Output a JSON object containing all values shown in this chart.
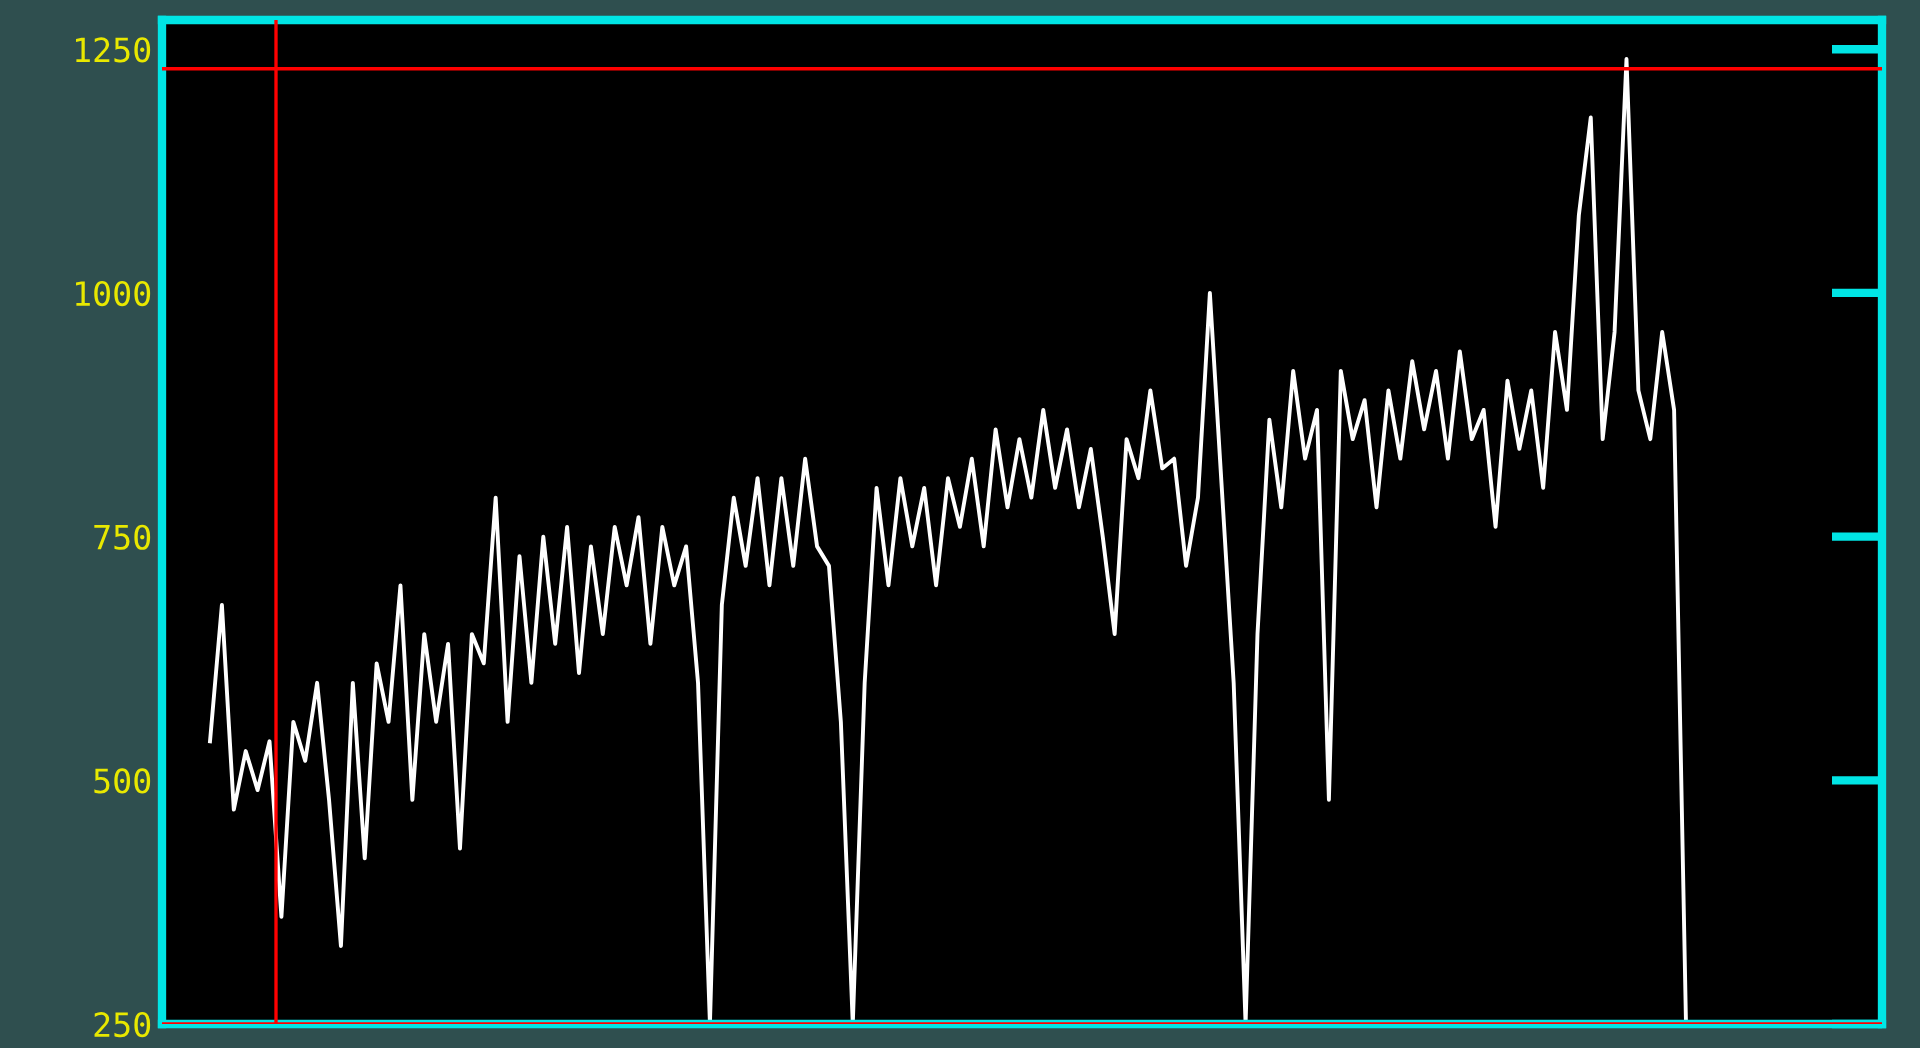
{
  "chart_data": {
    "type": "line",
    "categories": [
      null,
      null,
      null,
      null,
      null,
      null,
      null,
      null,
      null,
      null,
      null,
      null,
      null,
      null,
      null,
      null,
      null,
      null,
      null,
      null,
      null,
      null,
      null,
      null,
      null,
      null,
      null,
      null,
      null,
      null,
      null,
      null,
      null,
      null,
      null,
      null,
      null,
      null,
      null,
      null,
      null,
      null,
      null,
      null,
      null,
      null,
      null,
      null,
      null,
      null,
      null,
      null,
      null,
      null,
      null,
      null,
      null,
      null,
      null,
      null,
      null,
      null,
      null,
      null,
      null,
      null,
      null,
      null,
      null,
      null,
      null,
      null,
      null,
      null,
      null,
      null,
      null,
      null,
      null,
      null,
      null,
      null,
      null,
      null,
      null,
      null,
      null,
      null,
      null,
      null,
      null,
      null,
      null,
      null,
      null,
      null,
      null,
      null,
      null,
      null,
      null,
      null,
      null,
      null,
      null,
      null,
      null,
      null,
      null,
      null,
      null,
      null,
      null,
      null,
      null,
      null,
      null,
      null,
      null,
      null,
      null,
      null,
      null,
      null,
      null
    ],
    "series": [
      {
        "color": "#ffffff",
        "values": [
          540,
          680,
          470,
          530,
          490,
          540,
          360,
          560,
          520,
          600,
          480,
          330,
          600,
          420,
          620,
          560,
          700,
          480,
          650,
          560,
          640,
          430,
          650,
          620,
          790,
          560,
          730,
          600,
          750,
          640,
          760,
          610,
          740,
          650,
          760,
          700,
          770,
          640,
          760,
          700,
          740,
          600,
          250,
          680,
          790,
          720,
          810,
          700,
          810,
          720,
          830,
          740,
          720,
          560,
          250,
          600,
          800,
          700,
          810,
          740,
          800,
          700,
          810,
          760,
          830,
          740,
          860,
          780,
          850,
          790,
          880,
          800,
          860,
          780,
          840,
          750,
          650,
          850,
          810,
          900,
          820,
          830,
          720,
          790,
          1000,
          800,
          600,
          250,
          650,
          870,
          780,
          920,
          830,
          880,
          480,
          920,
          850,
          890,
          780,
          900,
          830,
          930,
          860,
          920,
          830,
          940,
          850,
          880,
          760,
          910,
          840,
          900,
          800,
          960,
          880,
          1080,
          1180,
          850,
          960,
          1240,
          900,
          850,
          960,
          880,
          250
        ]
      }
    ],
    "ylim": [
      250,
      1280
    ],
    "yticks": [
      250,
      500,
      750,
      1000,
      1250
    ],
    "ref_lines": [
      {
        "axis": "y",
        "value": 1230,
        "color": "#ff0000"
      },
      {
        "axis": "y",
        "value": 250,
        "color": "#ff0000"
      }
    ],
    "grid": false,
    "tick_labels": "y"
  }
}
